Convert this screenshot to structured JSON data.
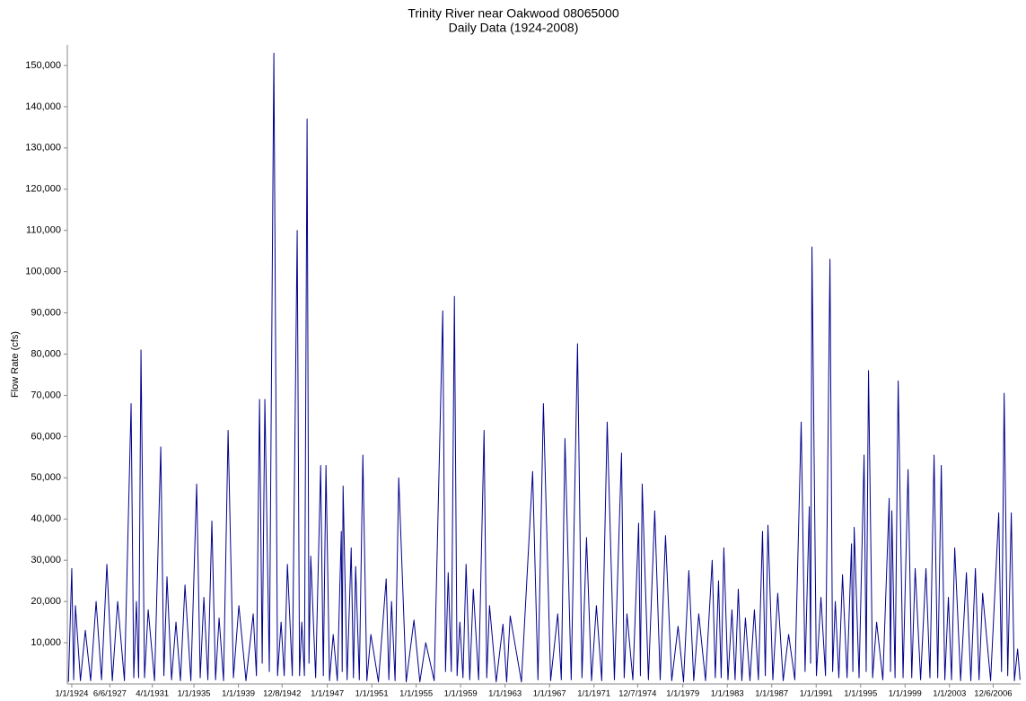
{
  "chart_data": {
    "type": "line",
    "title": "Trinity River near Oakwood 08065000",
    "subtitle": "Daily Data (1924-2008)",
    "y_label": "Flow Rate (cfs)",
    "xlim": [
      1923.6,
      2009.4
    ],
    "ylim": [
      0,
      155000
    ],
    "xticks": [
      {
        "value": 1924.0,
        "label": "1/1/1924"
      },
      {
        "value": 1927.43,
        "label": "6/6/1927"
      },
      {
        "value": 1931.25,
        "label": "4/1/1931"
      },
      {
        "value": 1935.0,
        "label": "1/1/1935"
      },
      {
        "value": 1939.0,
        "label": "1/1/1939"
      },
      {
        "value": 1942.93,
        "label": "12/8/1942"
      },
      {
        "value": 1947.0,
        "label": "1/1/1947"
      },
      {
        "value": 1951.0,
        "label": "1/1/1951"
      },
      {
        "value": 1955.0,
        "label": "1/1/1955"
      },
      {
        "value": 1959.0,
        "label": "1/1/1959"
      },
      {
        "value": 1963.0,
        "label": "1/1/1963"
      },
      {
        "value": 1967.0,
        "label": "1/1/1967"
      },
      {
        "value": 1971.0,
        "label": "1/1/1971"
      },
      {
        "value": 1974.93,
        "label": "12/7/1974"
      },
      {
        "value": 1979.0,
        "label": "1/1/1979"
      },
      {
        "value": 1983.0,
        "label": "1/1/1983"
      },
      {
        "value": 1987.0,
        "label": "1/1/1987"
      },
      {
        "value": 1991.0,
        "label": "1/1/1991"
      },
      {
        "value": 1995.0,
        "label": "1/1/1995"
      },
      {
        "value": 1999.0,
        "label": "1/1/1999"
      },
      {
        "value": 2003.0,
        "label": "1/1/2003"
      },
      {
        "value": 2006.93,
        "label": "12/6/2006"
      }
    ],
    "yticks": [
      {
        "value": 10000,
        "label": "10,000"
      },
      {
        "value": 20000,
        "label": "20,000"
      },
      {
        "value": 30000,
        "label": "30,000"
      },
      {
        "value": 40000,
        "label": "40,000"
      },
      {
        "value": 50000,
        "label": "50,000"
      },
      {
        "value": 60000,
        "label": "60,000"
      },
      {
        "value": 70000,
        "label": "70,000"
      },
      {
        "value": 80000,
        "label": "80,000"
      },
      {
        "value": 90000,
        "label": "90,000"
      },
      {
        "value": 100000,
        "label": "100,000"
      },
      {
        "value": 110000,
        "label": "110,000"
      },
      {
        "value": 120000,
        "label": "120,000"
      },
      {
        "value": 130000,
        "label": "130,000"
      },
      {
        "value": 140000,
        "label": "140,000"
      },
      {
        "value": 150000,
        "label": "150,000"
      }
    ],
    "grid": false,
    "x": [
      1923.7,
      1924.0,
      1924.17,
      1924.33,
      1924.78,
      1925.22,
      1925.7,
      1926.19,
      1926.68,
      1927.16,
      1927.65,
      1928.13,
      1928.74,
      1929.34,
      1929.58,
      1929.82,
      1930.02,
      1930.23,
      1930.55,
      1930.88,
      1931.45,
      1932.01,
      1932.29,
      1932.57,
      1932.98,
      1933.38,
      1933.78,
      1934.19,
      1934.72,
      1935.24,
      1935.56,
      1935.89,
      1936.25,
      1936.61,
      1936.94,
      1937.26,
      1937.66,
      1938.07,
      1938.55,
      1939.04,
      1939.68,
      1940.33,
      1940.62,
      1940.9,
      1941.14,
      1941.38,
      1941.78,
      1942.19,
      1942.52,
      1942.84,
      1943.12,
      1943.41,
      1943.85,
      1944.29,
      1944.5,
      1944.7,
      1944.94,
      1945.18,
      1945.35,
      1945.51,
      1945.95,
      1946.4,
      1946.64,
      1946.88,
      1947.2,
      1947.53,
      1947.9,
      1948.26,
      1948.34,
      1948.42,
      1948.78,
      1949.15,
      1949.35,
      1949.55,
      1949.88,
      1950.2,
      1950.56,
      1950.92,
      1951.6,
      1952.3,
      1952.54,
      1952.78,
      1953.1,
      1953.43,
      1954.1,
      1954.8,
      1955.33,
      1955.86,
      1956.62,
      1957.39,
      1957.64,
      1957.88,
      1958.16,
      1958.44,
      1958.68,
      1958.93,
      1959.21,
      1959.49,
      1959.82,
      1960.14,
      1960.62,
      1961.11,
      1961.35,
      1961.6,
      1962.2,
      1962.81,
      1963.14,
      1963.46,
      1964.47,
      1965.48,
      1965.96,
      1966.45,
      1967.1,
      1967.74,
      1968.06,
      1968.39,
      1968.95,
      1969.52,
      1969.92,
      1970.33,
      1970.78,
      1971.22,
      1971.7,
      1972.19,
      1972.84,
      1973.48,
      1973.72,
      1973.97,
      1974.5,
      1975.02,
      1975.18,
      1975.34,
      1975.9,
      1976.47,
      1976.96,
      1977.44,
      1978.0,
      1978.57,
      1979.06,
      1979.54,
      1979.98,
      1980.43,
      1981.04,
      1981.64,
      1981.92,
      1982.21,
      1982.45,
      1982.69,
      1983.06,
      1983.42,
      1983.7,
      1983.99,
      1984.31,
      1984.63,
      1985.04,
      1985.44,
      1985.8,
      1986.17,
      1986.42,
      1986.66,
      1987.1,
      1987.54,
      1988.03,
      1988.52,
      1989.08,
      1989.65,
      1990.0,
      1990.38,
      1990.5,
      1990.62,
      1991.02,
      1991.43,
      1991.84,
      1992.24,
      1992.48,
      1992.72,
      1993.04,
      1993.37,
      1993.78,
      1994.18,
      1994.3,
      1994.42,
      1994.86,
      1995.31,
      1995.5,
      1995.71,
      1996.08,
      1996.44,
      1997.0,
      1997.57,
      1997.69,
      1997.81,
      1998.1,
      1998.38,
      1998.82,
      1999.27,
      1999.6,
      1999.91,
      2000.4,
      2000.88,
      2001.24,
      2001.61,
      2001.94,
      2002.26,
      2002.58,
      2002.9,
      2003.18,
      2003.47,
      2004.0,
      2004.52,
      2004.92,
      2005.33,
      2005.66,
      2005.98,
      2006.7,
      2007.43,
      2007.68,
      2007.92,
      2008.24,
      2008.56,
      2008.84,
      2009.13,
      2009.35
    ],
    "series": [
      {
        "color": "#00008b",
        "values": [
          500,
          28000,
          1000,
          19000,
          800,
          13000,
          800,
          20000,
          1000,
          29000,
          800,
          20000,
          800,
          68000,
          1500,
          20000,
          1500,
          81000,
          1500,
          18000,
          800,
          57500,
          2000,
          26000,
          1000,
          15000,
          800,
          24000,
          800,
          48500,
          1500,
          21000,
          1000,
          39500,
          1000,
          16000,
          800,
          61500,
          1500,
          19000,
          800,
          17000,
          2000,
          69000,
          5000,
          69000,
          3000,
          153000,
          2000,
          15000,
          2000,
          29000,
          2000,
          110000,
          2000,
          15000,
          2000,
          137000,
          5000,
          31000,
          1500,
          53000,
          2000,
          53000,
          800,
          12000,
          800,
          37000,
          3000,
          48000,
          1000,
          33000,
          1500,
          28500,
          1000,
          55500,
          800,
          12000,
          500,
          25500,
          1000,
          20000,
          800,
          50000,
          500,
          15500,
          500,
          10000,
          800,
          90500,
          3000,
          27000,
          3000,
          94000,
          2000,
          15000,
          1500,
          29000,
          1000,
          23000,
          1000,
          61500,
          1500,
          19000,
          500,
          14500,
          500,
          16500,
          500,
          51500,
          1000,
          68000,
          800,
          17000,
          1000,
          59500,
          1000,
          82500,
          1500,
          35500,
          800,
          19000,
          800,
          63500,
          1000,
          56000,
          1500,
          17000,
          1000,
          39000,
          2000,
          48500,
          1000,
          42000,
          1000,
          36000,
          800,
          14000,
          500,
          27500,
          800,
          17000,
          800,
          30000,
          1500,
          25000,
          1500,
          33000,
          1000,
          18000,
          1000,
          23000,
          800,
          16000,
          800,
          18000,
          1000,
          37000,
          2000,
          38500,
          1000,
          22000,
          800,
          12000,
          1000,
          63500,
          3000,
          43000,
          5000,
          106000,
          2000,
          21000,
          2000,
          103000,
          3000,
          20000,
          1500,
          26500,
          1500,
          34000,
          3000,
          38000,
          1500,
          55500,
          3000,
          76000,
          1500,
          15000,
          1000,
          45000,
          3000,
          42000,
          1500,
          73500,
          1500,
          52000,
          1500,
          28000,
          1000,
          28000,
          1500,
          55500,
          1500,
          53000,
          1000,
          21000,
          1000,
          33000,
          800,
          27000,
          800,
          28000,
          1000,
          22000,
          800,
          41500,
          3000,
          70500,
          2000,
          41500,
          800,
          8500,
          1000
        ]
      }
    ]
  }
}
